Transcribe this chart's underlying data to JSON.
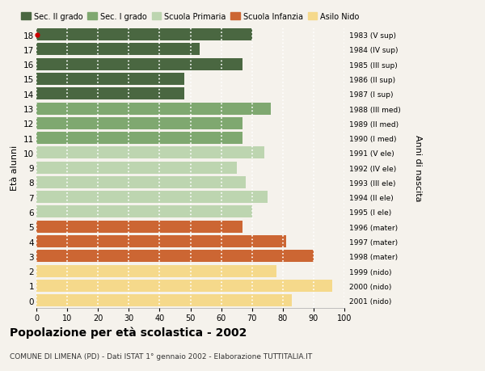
{
  "ages": [
    18,
    17,
    16,
    15,
    14,
    13,
    12,
    11,
    10,
    9,
    8,
    7,
    6,
    5,
    4,
    3,
    2,
    1,
    0
  ],
  "values": [
    70,
    53,
    67,
    48,
    48,
    76,
    67,
    67,
    74,
    65,
    68,
    75,
    70,
    67,
    81,
    90,
    78,
    96,
    83
  ],
  "right_labels": [
    "1983 (V sup)",
    "1984 (IV sup)",
    "1985 (III sup)",
    "1986 (II sup)",
    "1987 (I sup)",
    "1988 (III med)",
    "1989 (II med)",
    "1990 (I med)",
    "1991 (V ele)",
    "1992 (IV ele)",
    "1993 (III ele)",
    "1994 (II ele)",
    "1995 (I ele)",
    "1996 (mater)",
    "1997 (mater)",
    "1998 (mater)",
    "1999 (nido)",
    "2000 (nido)",
    "2001 (nido)"
  ],
  "colors": [
    "#4a6741",
    "#4a6741",
    "#4a6741",
    "#4a6741",
    "#4a6741",
    "#7fa870",
    "#7fa870",
    "#7fa870",
    "#bdd5b0",
    "#bdd5b0",
    "#bdd5b0",
    "#bdd5b0",
    "#bdd5b0",
    "#cc6633",
    "#cc6633",
    "#cc6633",
    "#f5d98b",
    "#f5d98b",
    "#f5d98b"
  ],
  "legend_labels": [
    "Sec. II grado",
    "Sec. I grado",
    "Scuola Primaria",
    "Scuola Infanzia",
    "Asilo Nido"
  ],
  "legend_colors": [
    "#4a6741",
    "#7fa870",
    "#bdd5b0",
    "#cc6633",
    "#f5d98b"
  ],
  "ylabel_left": "Età alunni",
  "ylabel_right": "Anni di nascita",
  "title": "Popolazione per età scolastica - 2002",
  "subtitle": "COMUNE DI LIMENA (PD) - Dati ISTAT 1° gennaio 2002 - Elaborazione TUTTITALIA.IT",
  "xlim": [
    0,
    100
  ],
  "xticks": [
    0,
    10,
    20,
    30,
    40,
    50,
    60,
    70,
    80,
    90,
    100
  ],
  "background_color": "#f5f2ec",
  "grid_color": "#ffffff",
  "dot_color": "#cc0000"
}
